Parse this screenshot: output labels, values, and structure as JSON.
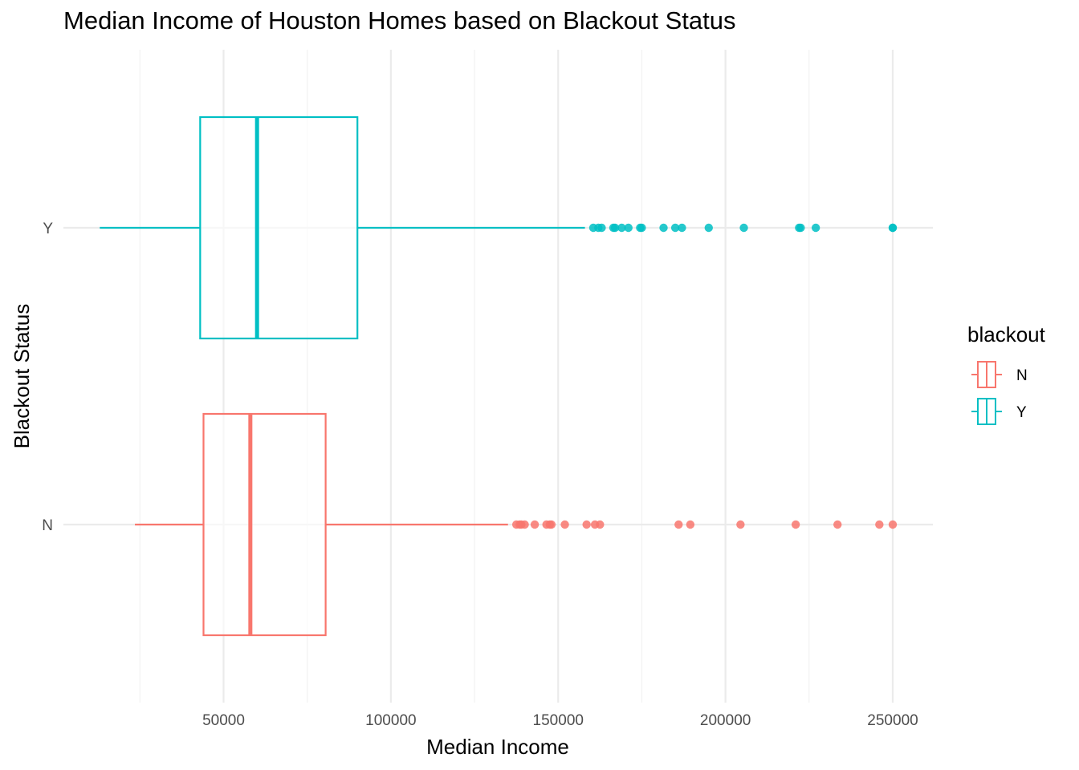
{
  "chart_data": {
    "type": "boxplot",
    "title": "Median Income of Houston Homes based on Blackout Status",
    "xlabel": "Median Income",
    "ylabel": "Blackout Status",
    "xlim": [
      0,
      260000
    ],
    "x_ticks": [
      50000,
      100000,
      150000,
      200000,
      250000
    ],
    "x_tick_labels": [
      "50000",
      "100000",
      "150000",
      "200000",
      "250000"
    ],
    "categories": [
      "N",
      "Y"
    ],
    "grid": true,
    "legend": {
      "title": "blackout",
      "position": "right",
      "entries": [
        {
          "label": "N",
          "color": "#F8766D"
        },
        {
          "label": "Y",
          "color": "#00BFC4"
        }
      ]
    },
    "series": [
      {
        "name": "N",
        "color": "#F8766D",
        "whisker_low": 23500,
        "q1": 44000,
        "median": 58000,
        "q3": 80500,
        "whisker_high": 135000,
        "outliers": [
          137500,
          138500,
          139000,
          140000,
          143000,
          146500,
          147500,
          148000,
          152000,
          158500,
          161000,
          162500,
          186000,
          189500,
          204500,
          221000,
          233500,
          246000,
          250000
        ]
      },
      {
        "name": "Y",
        "color": "#00BFC4",
        "whisker_low": 13000,
        "q1": 43000,
        "median": 60000,
        "q3": 90000,
        "whisker_high": 158000,
        "outliers": [
          160500,
          162000,
          163000,
          166500,
          167000,
          169000,
          171000,
          174500,
          175000,
          181500,
          185000,
          187000,
          195000,
          205500,
          222000,
          222500,
          227000,
          250000,
          250000
        ]
      }
    ]
  }
}
